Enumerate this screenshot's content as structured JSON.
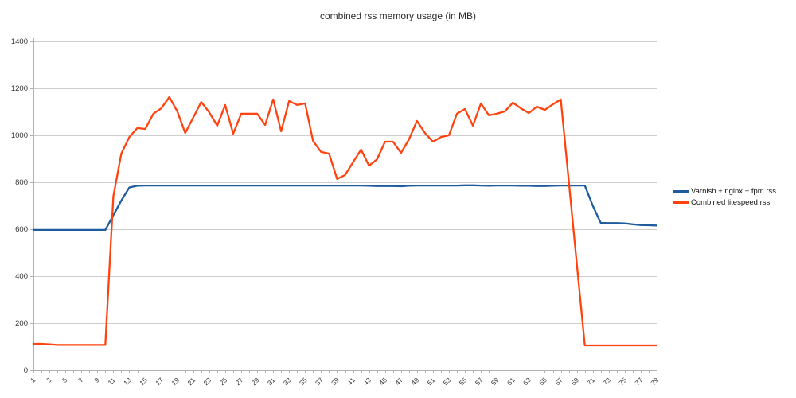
{
  "colors": {
    "grid": "#cdcdcd",
    "axis": "#b0b0b0",
    "text": "#333333",
    "series_blue": "#1f5c9e",
    "series_orange": "#ff420e"
  },
  "chart_data": {
    "type": "line",
    "title": "combined rss memory usage (in MB)",
    "ylim": [
      0,
      1400
    ],
    "ytick_step": 200,
    "grid": "horizontal-only",
    "legend_position": "right",
    "x_labels_shown": "odd values 1 to 79, rotated 45 degrees",
    "x": [
      1,
      2,
      3,
      4,
      5,
      6,
      7,
      8,
      9,
      10,
      11,
      12,
      13,
      14,
      15,
      16,
      17,
      18,
      19,
      20,
      21,
      22,
      23,
      24,
      25,
      26,
      27,
      28,
      29,
      30,
      31,
      32,
      33,
      34,
      35,
      36,
      37,
      38,
      39,
      40,
      41,
      42,
      43,
      44,
      45,
      46,
      47,
      48,
      49,
      50,
      51,
      52,
      53,
      54,
      55,
      56,
      57,
      58,
      59,
      60,
      61,
      62,
      63,
      64,
      65,
      66,
      67,
      68,
      69,
      70,
      71,
      72,
      73,
      74,
      75,
      76,
      77,
      78,
      79
    ],
    "series": [
      {
        "id": "varnish",
        "name": "Varnish + nginx + fpm rss",
        "color": "#1f5c9e",
        "values": [
          597,
          597,
          597,
          597,
          597,
          597,
          597,
          597,
          597,
          597,
          660,
          722,
          778,
          785,
          786,
          786,
          786,
          786,
          786,
          786,
          786,
          786,
          786,
          786,
          786,
          786,
          786,
          786,
          786,
          786,
          786,
          786,
          786,
          786,
          786,
          786,
          786,
          786,
          786,
          786,
          786,
          786,
          785,
          784,
          784,
          784,
          783,
          785,
          786,
          786,
          786,
          786,
          786,
          786,
          787,
          787,
          786,
          785,
          786,
          786,
          786,
          785,
          785,
          784,
          784,
          785,
          786,
          786,
          786,
          786,
          700,
          627,
          626,
          626,
          625,
          621,
          618,
          617,
          616
        ]
      },
      {
        "id": "litespeed",
        "name": "Combined litespeed rss",
        "color": "#ff420e",
        "values": [
          112,
          112,
          110,
          107,
          107,
          107,
          107,
          107,
          107,
          107,
          740,
          922,
          993,
          1031,
          1027,
          1092,
          1115,
          1163,
          1102,
          1010,
          1076,
          1142,
          1098,
          1041,
          1129,
          1007,
          1092,
          1092,
          1092,
          1044,
          1153,
          1017,
          1146,
          1129,
          1136,
          976,
          929,
          922,
          814,
          831,
          885,
          939,
          871,
          898,
          973,
          973,
          925,
          983,
          1061,
          1010,
          973,
          993,
          1000,
          1092,
          1112,
          1041,
          1136,
          1085,
          1092,
          1102,
          1139,
          1115,
          1095,
          1122,
          1108,
          1132,
          1153,
          803,
          454,
          105,
          105,
          105,
          105,
          105,
          105,
          105,
          105,
          105,
          105
        ]
      }
    ]
  }
}
